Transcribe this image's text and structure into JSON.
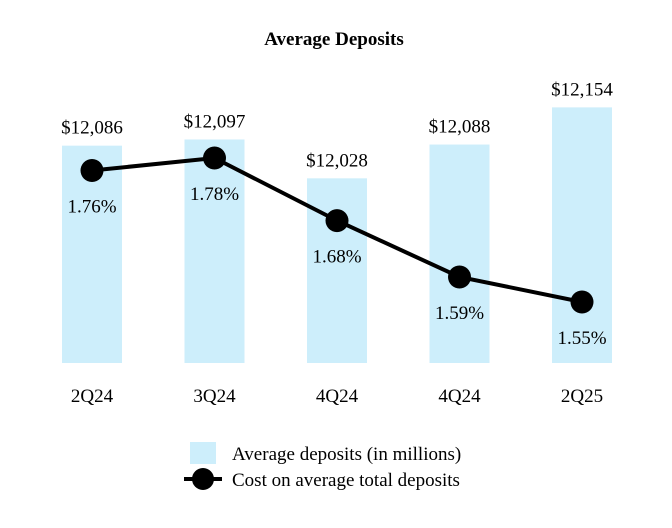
{
  "chart_data": {
    "type": "bar",
    "title": "Average Deposits",
    "categories": [
      "2Q24",
      "3Q24",
      "4Q24",
      "4Q24",
      "2Q25"
    ],
    "series": [
      {
        "name": "Average deposits (in millions)",
        "type": "bar",
        "values": [
          12086,
          12097,
          12028,
          12088,
          12154
        ],
        "labels": [
          "$12,086",
          "$12,097",
          "$12,028",
          "$12,088",
          "$12,154"
        ],
        "color": "#cdeefb"
      },
      {
        "name": "Cost on average total deposits",
        "type": "line",
        "values": [
          1.76,
          1.78,
          1.68,
          1.59,
          1.55
        ],
        "labels": [
          "1.76%",
          "1.78%",
          "1.68%",
          "1.59%",
          "1.55%"
        ],
        "color": "#000000"
      }
    ],
    "bar_axis_range": [
      11700,
      12160
    ],
    "line_axis_range": [
      1.3,
      1.9
    ],
    "legend_position": "bottom-center",
    "grid": false
  }
}
